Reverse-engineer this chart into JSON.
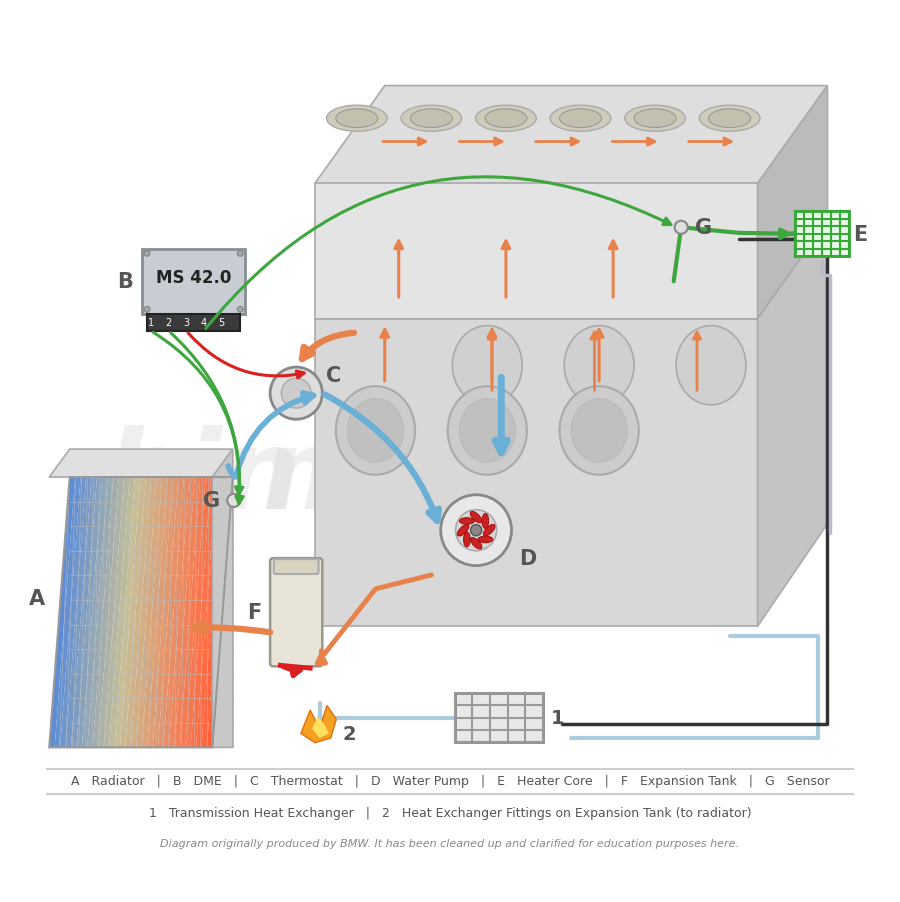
{
  "bg_color": "#ffffff",
  "legend_line1": "A   Radiator   |   B   DME   |   C   Thermostat   |   D   Water Pump   |   E   Heater Core   |   F   Expansion Tank   |   G   Sensor",
  "legend_line2": "1   Transmission Heat Exchanger   |   2   Heat Exchanger Fittings on Expansion Tank (to radiator)",
  "legend_line3": "Diagram originally produced by BMW. It has been cleaned up and clarified for education purposes here.",
  "color_hot": "#E8824A",
  "color_cool": "#6AAFD6",
  "color_green": "#3EA63E",
  "color_red": "#D92020",
  "color_gray_text": "#555555",
  "color_gray_light": "#CCCCCC",
  "color_dark_gray": "#888888",
  "watermark_color": "#DDDDDD",
  "dme_face": "#C8CDD4",
  "dme_edge": "#888E96",
  "dme_pins": "#3A3A3A",
  "radiator_left": "#5B9BD5",
  "radiator_right": "#D85B2A",
  "heater_green": "#33AA33",
  "pipe_lw": 3.5,
  "wire_lw": 2.2
}
